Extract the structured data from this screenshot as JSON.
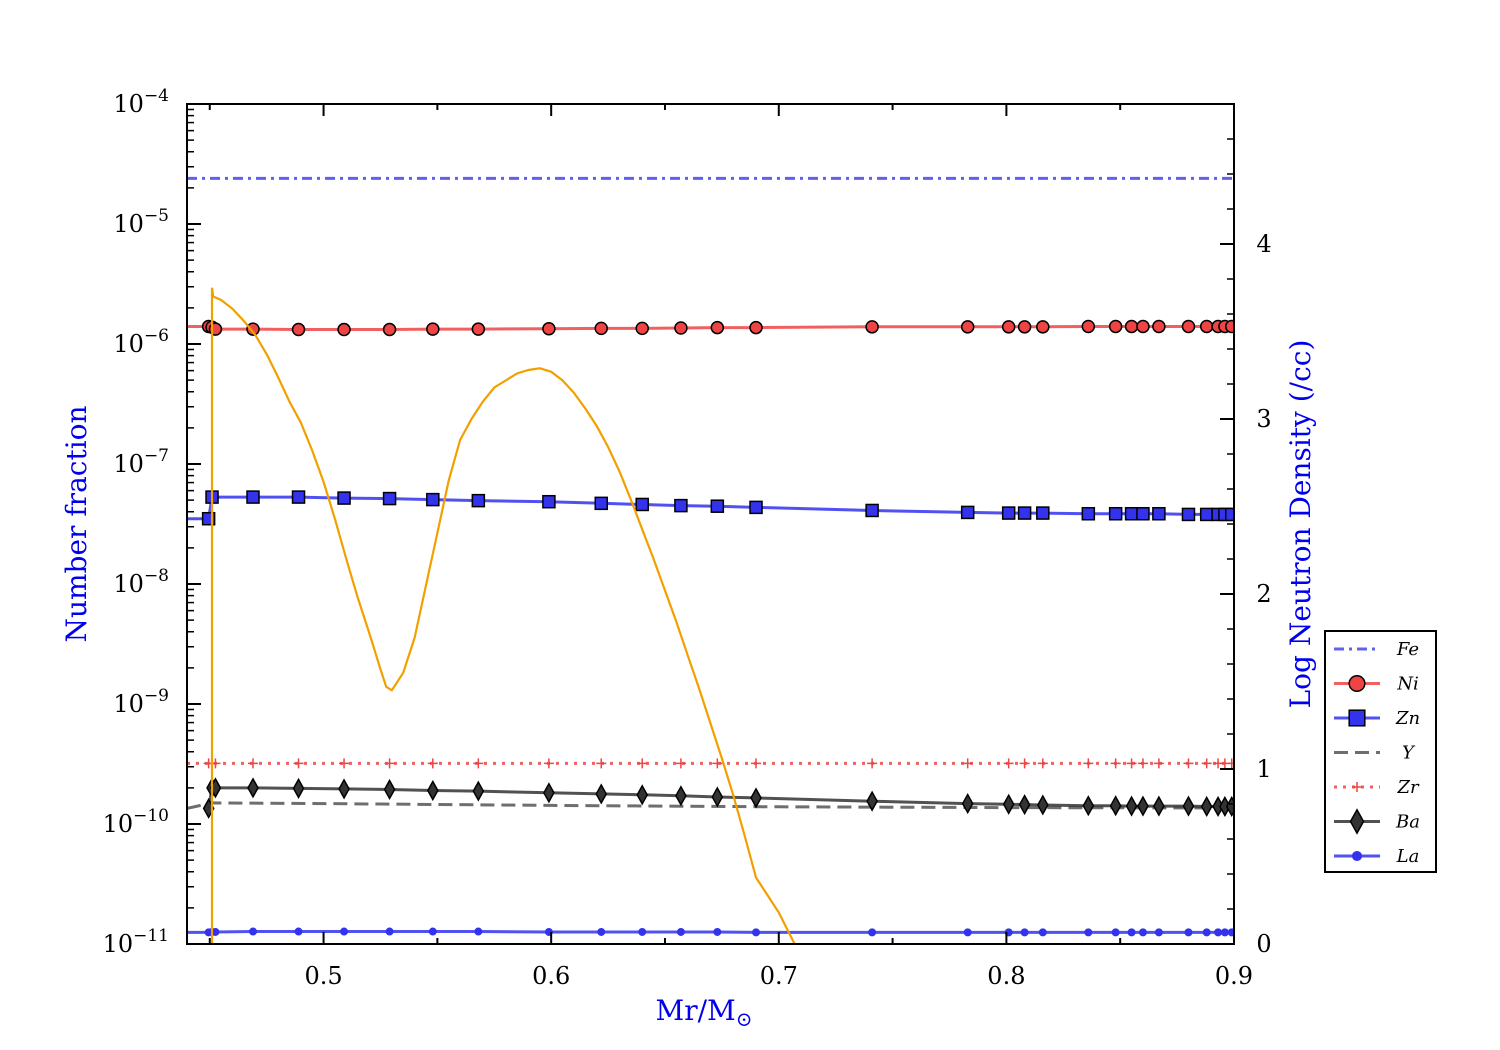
{
  "chart_data": {
    "type": "line",
    "xlabel": "Mr/M",
    "xlabel_sub": "⊙",
    "ylabel": "Number fraction",
    "y2label": "Log Neutron Density (/cc)",
    "xlim": [
      0.44,
      0.9
    ],
    "ylim": [
      1e-11,
      0.0001
    ],
    "yscale": "log",
    "y2lim": [
      0,
      4.8
    ],
    "grid": false,
    "legend_position": "right",
    "x_ticks": [
      0.5,
      0.6,
      0.7,
      0.8,
      0.9
    ],
    "y_tick_exponents": [
      -11,
      -10,
      -9,
      -8,
      -7,
      -6,
      -5,
      -4
    ],
    "y2_ticks": [
      0,
      1,
      2,
      3,
      4
    ],
    "mass_coords": [
      0.4495,
      0.451,
      0.4525,
      0.469,
      0.489,
      0.509,
      0.529,
      0.548,
      0.568,
      0.599,
      0.622,
      0.64,
      0.657,
      0.673,
      0.69,
      0.741,
      0.783,
      0.801,
      0.808,
      0.816,
      0.836,
      0.848,
      0.855,
      0.86,
      0.867,
      0.88,
      0.888,
      0.893,
      0.896,
      0.899
    ],
    "series": [
      {
        "name": "Fe",
        "color": "#4444ee",
        "dash": "dashdot",
        "marker": "none",
        "x": [
          0.44,
          0.9
        ],
        "y": [
          2.4e-05,
          2.4e-05
        ]
      },
      {
        "name": "Ni",
        "color": "#ee4444",
        "dash": "solid",
        "marker": "circle",
        "x": [
          0.44,
          0.4495,
          0.451,
          0.4525,
          0.469,
          0.489,
          0.509,
          0.529,
          0.548,
          0.568,
          0.599,
          0.622,
          0.64,
          0.657,
          0.673,
          0.69,
          0.741,
          0.783,
          0.801,
          0.808,
          0.816,
          0.836,
          0.848,
          0.855,
          0.86,
          0.867,
          0.88,
          0.888,
          0.893,
          0.896,
          0.899
        ],
        "y": [
          1.4e-06,
          1.4e-06,
          1.38e-06,
          1.33e-06,
          1.33e-06,
          1.32e-06,
          1.32e-06,
          1.32e-06,
          1.33e-06,
          1.33e-06,
          1.34e-06,
          1.35e-06,
          1.35e-06,
          1.36e-06,
          1.37e-06,
          1.37e-06,
          1.39e-06,
          1.39e-06,
          1.39e-06,
          1.39e-06,
          1.39e-06,
          1.4e-06,
          1.4e-06,
          1.4e-06,
          1.4e-06,
          1.4e-06,
          1.4e-06,
          1.4e-06,
          1.4e-06,
          1.4e-06,
          1.4e-06
        ]
      },
      {
        "name": "Zn",
        "color": "#3333ee",
        "dash": "solid",
        "marker": "square",
        "x": [
          0.44,
          0.4495,
          0.451,
          0.469,
          0.489,
          0.509,
          0.529,
          0.548,
          0.568,
          0.599,
          0.622,
          0.64,
          0.657,
          0.673,
          0.69,
          0.741,
          0.783,
          0.801,
          0.808,
          0.816,
          0.836,
          0.848,
          0.855,
          0.86,
          0.867,
          0.88,
          0.888,
          0.893,
          0.896,
          0.899
        ],
        "y": [
          3.5e-08,
          3.5e-08,
          5.3e-08,
          5.3e-08,
          5.3e-08,
          5.2e-08,
          5.15e-08,
          5.05e-08,
          4.95e-08,
          4.85e-08,
          4.7e-08,
          4.6e-08,
          4.5e-08,
          4.45e-08,
          4.35e-08,
          4.1e-08,
          3.95e-08,
          3.9e-08,
          3.9e-08,
          3.9e-08,
          3.85e-08,
          3.85e-08,
          3.85e-08,
          3.85e-08,
          3.85e-08,
          3.8e-08,
          3.8e-08,
          3.8e-08,
          3.8e-08,
          3.8e-08
        ]
      },
      {
        "name": "Y",
        "color": "#555555",
        "dash": "dashed",
        "marker": "none",
        "x": [
          0.44,
          0.451,
          0.5,
          0.6,
          0.7,
          0.8,
          0.9
        ],
        "y": [
          1.35e-10,
          1.5e-10,
          1.48e-10,
          1.43e-10,
          1.39e-10,
          1.37e-10,
          1.36e-10
        ]
      },
      {
        "name": "Zr",
        "color": "#ee4444",
        "dash": "dotted",
        "marker": "plus",
        "x": [
          0.44,
          0.4495,
          0.451,
          0.4525,
          0.469,
          0.489,
          0.509,
          0.529,
          0.548,
          0.568,
          0.599,
          0.622,
          0.64,
          0.657,
          0.673,
          0.69,
          0.741,
          0.783,
          0.801,
          0.808,
          0.816,
          0.836,
          0.848,
          0.855,
          0.86,
          0.867,
          0.88,
          0.888,
          0.893,
          0.896,
          0.899
        ],
        "y": [
          3.2e-10,
          3.2e-10,
          3.2e-10,
          3.2e-10,
          3.2e-10,
          3.2e-10,
          3.2e-10,
          3.2e-10,
          3.2e-10,
          3.2e-10,
          3.2e-10,
          3.2e-10,
          3.2e-10,
          3.2e-10,
          3.2e-10,
          3.2e-10,
          3.2e-10,
          3.2e-10,
          3.2e-10,
          3.2e-10,
          3.2e-10,
          3.2e-10,
          3.2e-10,
          3.2e-10,
          3.2e-10,
          3.2e-10,
          3.2e-10,
          3.2e-10,
          3.2e-10,
          3.2e-10,
          3.2e-10
        ]
      },
      {
        "name": "Ba",
        "color": "#333333",
        "dash": "solid",
        "marker": "diamond",
        "x": [
          0.4495,
          0.451,
          0.4525,
          0.469,
          0.489,
          0.509,
          0.529,
          0.548,
          0.568,
          0.599,
          0.622,
          0.64,
          0.657,
          0.673,
          0.69,
          0.741,
          0.783,
          0.801,
          0.808,
          0.816,
          0.836,
          0.848,
          0.855,
          0.86,
          0.867,
          0.88,
          0.888,
          0.893,
          0.896,
          0.899
        ],
        "y": [
          1.35e-10,
          2e-10,
          2e-10,
          2e-10,
          1.98e-10,
          1.96e-10,
          1.94e-10,
          1.9e-10,
          1.88e-10,
          1.82e-10,
          1.78e-10,
          1.75e-10,
          1.72e-10,
          1.68e-10,
          1.65e-10,
          1.55e-10,
          1.48e-10,
          1.46e-10,
          1.45e-10,
          1.44e-10,
          1.42e-10,
          1.42e-10,
          1.41e-10,
          1.41e-10,
          1.41e-10,
          1.41e-10,
          1.4e-10,
          1.4e-10,
          1.4e-10,
          1.4e-10
        ]
      },
      {
        "name": "La",
        "color": "#3333ee",
        "dash": "solid",
        "marker": "dot",
        "x": [
          0.44,
          0.4495,
          0.451,
          0.4525,
          0.469,
          0.489,
          0.509,
          0.529,
          0.548,
          0.568,
          0.599,
          0.622,
          0.64,
          0.657,
          0.673,
          0.69,
          0.741,
          0.783,
          0.801,
          0.808,
          0.816,
          0.836,
          0.848,
          0.855,
          0.86,
          0.867,
          0.88,
          0.888,
          0.893,
          0.896,
          0.899
        ],
        "y": [
          1.25e-11,
          1.25e-11,
          1.26e-11,
          1.26e-11,
          1.27e-11,
          1.27e-11,
          1.27e-11,
          1.27e-11,
          1.27e-11,
          1.27e-11,
          1.26e-11,
          1.26e-11,
          1.26e-11,
          1.26e-11,
          1.26e-11,
          1.25e-11,
          1.25e-11,
          1.25e-11,
          1.25e-11,
          1.25e-11,
          1.25e-11,
          1.25e-11,
          1.25e-11,
          1.25e-11,
          1.25e-11,
          1.25e-11,
          1.25e-11,
          1.25e-11,
          1.25e-11,
          1.25e-11,
          1.25e-11
        ]
      }
    ],
    "neutron_density": {
      "color": "#f2a000",
      "axis": "right",
      "x": [
        0.451,
        0.451,
        0.4515,
        0.455,
        0.46,
        0.465,
        0.47,
        0.475,
        0.48,
        0.485,
        0.49,
        0.495,
        0.5,
        0.505,
        0.51,
        0.515,
        0.52,
        0.525,
        0.5275,
        0.53,
        0.535,
        0.54,
        0.545,
        0.55,
        0.555,
        0.56,
        0.565,
        0.57,
        0.575,
        0.58,
        0.585,
        0.59,
        0.595,
        0.6,
        0.605,
        0.61,
        0.615,
        0.62,
        0.625,
        0.63,
        0.635,
        0.64,
        0.645,
        0.65,
        0.655,
        0.66,
        0.665,
        0.67,
        0.675,
        0.68,
        0.685,
        0.69,
        0.695,
        0.7,
        0.705,
        0.707
      ],
      "y": [
        0,
        3.75,
        3.7,
        3.68,
        3.63,
        3.56,
        3.48,
        3.37,
        3.24,
        3.1,
        2.98,
        2.82,
        2.64,
        2.43,
        2.2,
        1.98,
        1.78,
        1.57,
        1.47,
        1.45,
        1.55,
        1.75,
        2.05,
        2.35,
        2.65,
        2.88,
        3.0,
        3.1,
        3.18,
        3.22,
        3.26,
        3.28,
        3.29,
        3.27,
        3.22,
        3.15,
        3.06,
        2.96,
        2.84,
        2.7,
        2.54,
        2.37,
        2.2,
        2.02,
        1.84,
        1.65,
        1.46,
        1.26,
        1.06,
        0.85,
        0.62,
        0.38,
        0.28,
        0.18,
        0.05,
        0.0
      ]
    }
  }
}
